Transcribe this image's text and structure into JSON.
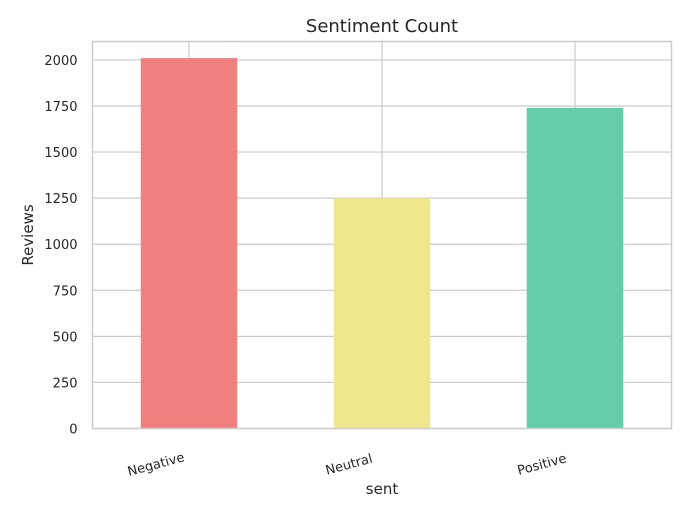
{
  "chart_data": {
    "type": "bar",
    "title": "Sentiment Count",
    "xlabel": "sent",
    "ylabel": "Reviews",
    "categories": [
      "Negative",
      "Neutral",
      "Positive"
    ],
    "values": [
      2010,
      1250,
      1740
    ],
    "colors": [
      "#f08080",
      "#f0e68c",
      "#66cdaa"
    ],
    "ylim": [
      0,
      2100
    ],
    "yticks": [
      0,
      250,
      500,
      750,
      1000,
      1250,
      1500,
      1750,
      2000
    ],
    "grid": true,
    "legend": "none"
  }
}
